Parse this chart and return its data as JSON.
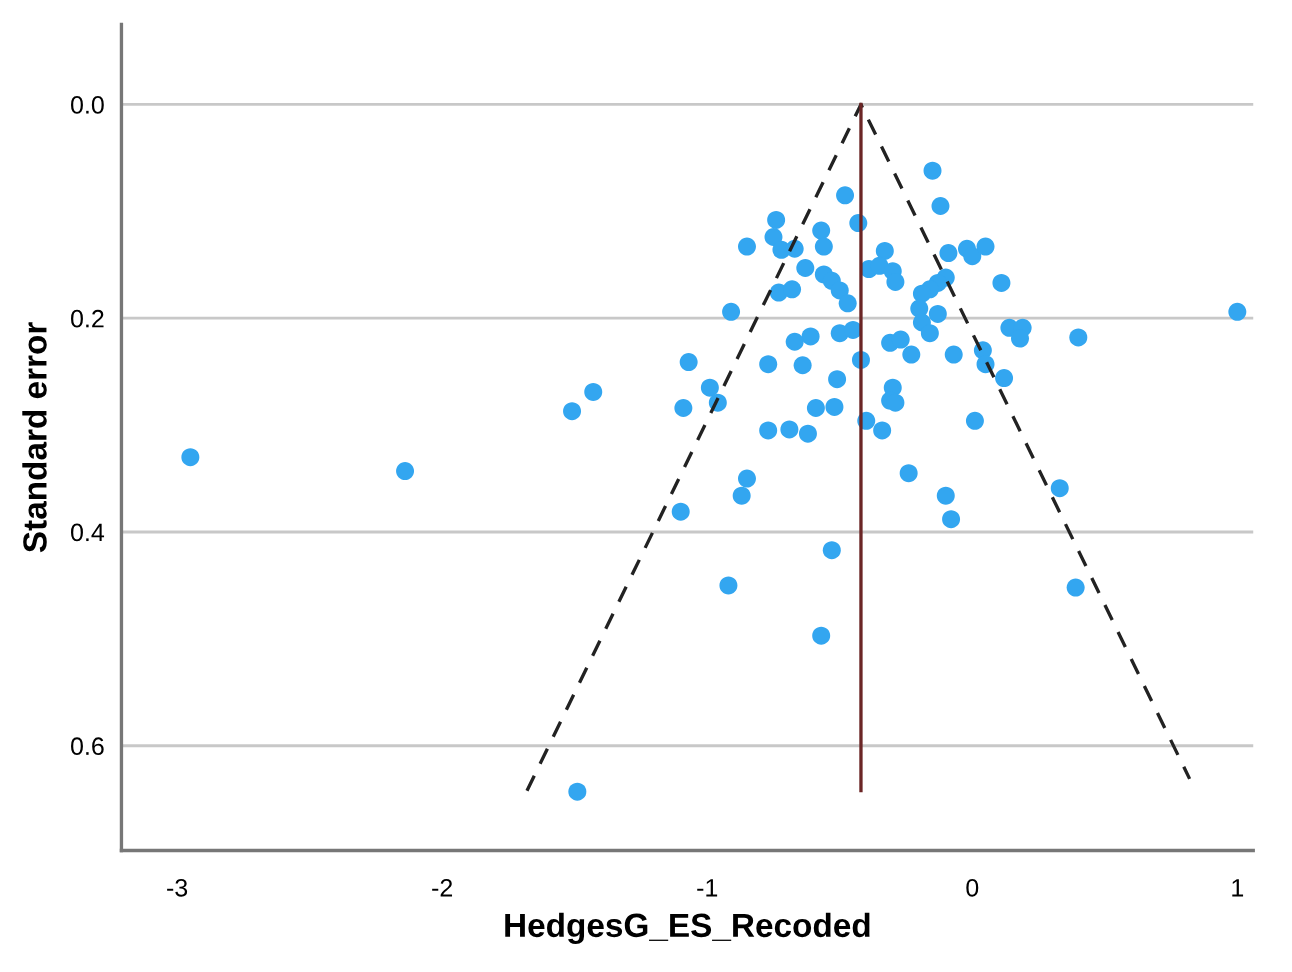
{
  "chart_data": {
    "type": "scatter",
    "xlabel": "HedgesG_ES_Recoded",
    "ylabel": "Standard error",
    "xlim": [
      -3.21,
      1.06
    ],
    "ylim": [
      0.698,
      -0.075
    ],
    "xticks": [
      -3,
      -2,
      -1,
      0,
      1
    ],
    "yticks": [
      {
        "value": 0.0,
        "label": "0.0"
      },
      {
        "value": 0.2,
        "label": "0.2"
      },
      {
        "value": 0.4,
        "label": "0.4"
      },
      {
        "value": 0.6,
        "label": "0.6"
      }
    ],
    "grid": "y",
    "series": [
      {
        "type": "line",
        "color": "#222222",
        "line_style": "dashed",
        "marker": "none",
        "x": [
          -1.68,
          -0.42,
          0.82
        ],
        "values": [
          0.642,
          0.0,
          0.631
        ]
      },
      {
        "type": "line",
        "color": "#6b2626",
        "line_style": "solid",
        "marker": "none",
        "x": [
          -0.42,
          -0.42
        ],
        "values": [
          0.0,
          0.642
        ]
      },
      {
        "color": "#33a6f0",
        "marker": "circle",
        "x": [
          -2.95,
          -2.14,
          -1.51,
          -1.43,
          -1.49,
          -0.87,
          -1.1,
          -0.1,
          -0.08,
          0.33,
          -0.53,
          -0.92,
          0.39,
          -0.57,
          -0.15,
          -0.48,
          -0.12,
          -0.74,
          -0.43,
          -0.75,
          -0.57,
          -0.85,
          -0.72,
          -0.67,
          -0.56,
          -0.33,
          -0.09,
          -0.02,
          0.0,
          0.05,
          -0.63,
          -0.39,
          -0.35,
          -0.3,
          -0.29,
          -0.56,
          -0.53,
          -0.5,
          -0.47,
          -0.73,
          -0.68,
          -0.91,
          -0.1,
          -0.13,
          -0.16,
          -0.19,
          -0.2,
          -0.13,
          -0.19,
          -0.16,
          0.11,
          0.14,
          0.19,
          0.18,
          0.4,
          1.0,
          -0.5,
          -0.45,
          -0.61,
          -0.67,
          -0.42,
          -0.31,
          -0.27,
          -0.23,
          -0.07,
          0.04,
          0.05,
          0.12,
          -1.07,
          -0.77,
          -0.64,
          -0.51,
          -0.99,
          -0.96,
          -1.09,
          -0.59,
          -0.52,
          -0.3,
          -0.31,
          -0.29,
          -0.4,
          -0.34,
          0.01,
          -0.77,
          -0.69,
          -0.62,
          -0.24,
          -0.85
        ],
        "values": [
          0.33,
          0.343,
          0.287,
          0.269,
          0.643,
          0.366,
          0.381,
          0.366,
          0.388,
          0.359,
          0.417,
          0.45,
          0.452,
          0.497,
          0.062,
          0.085,
          0.095,
          0.108,
          0.111,
          0.124,
          0.118,
          0.133,
          0.136,
          0.135,
          0.133,
          0.137,
          0.139,
          0.135,
          0.142,
          0.133,
          0.153,
          0.154,
          0.151,
          0.156,
          0.166,
          0.159,
          0.165,
          0.174,
          0.186,
          0.176,
          0.173,
          0.194,
          0.162,
          0.167,
          0.173,
          0.177,
          0.191,
          0.196,
          0.204,
          0.214,
          0.167,
          0.209,
          0.209,
          0.219,
          0.218,
          0.194,
          0.214,
          0.211,
          0.217,
          0.222,
          0.239,
          0.223,
          0.22,
          0.234,
          0.234,
          0.23,
          0.243,
          0.256,
          0.241,
          0.243,
          0.244,
          0.257,
          0.265,
          0.279,
          0.284,
          0.284,
          0.283,
          0.265,
          0.277,
          0.279,
          0.296,
          0.305,
          0.296,
          0.305,
          0.304,
          0.308,
          0.345,
          0.35
        ]
      }
    ]
  }
}
